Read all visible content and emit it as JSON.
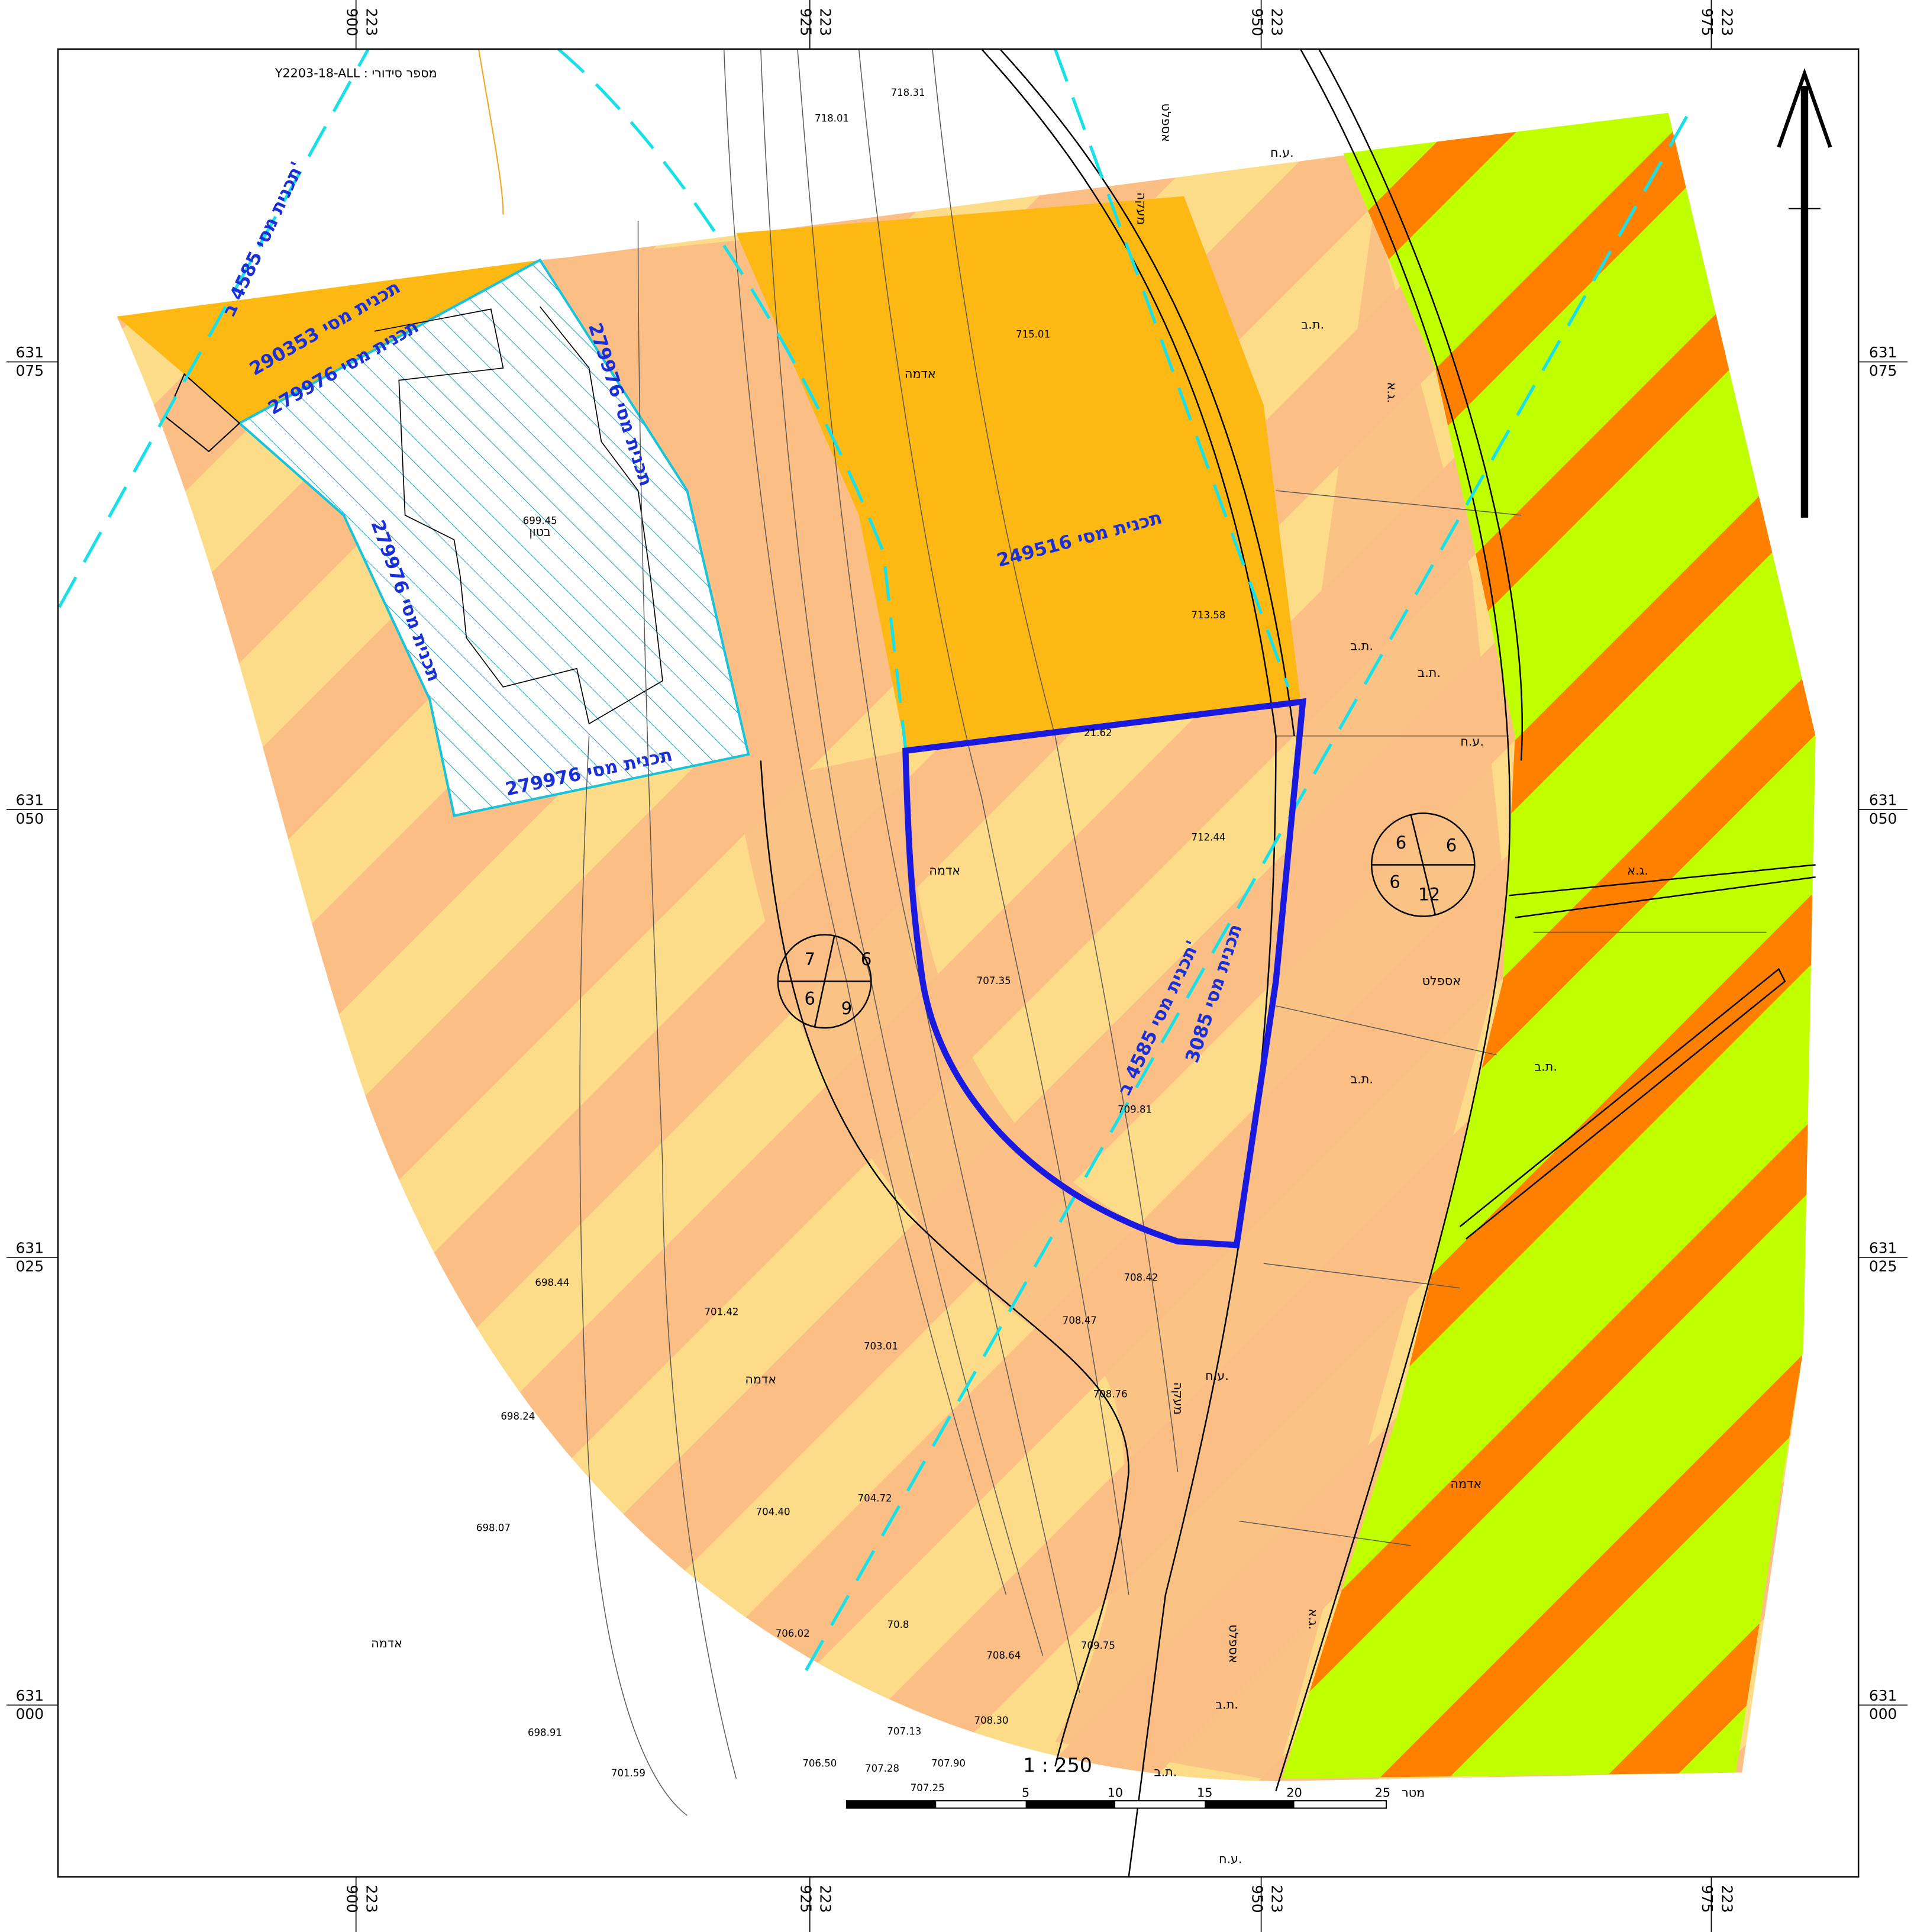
{
  "header": {
    "serial": "מספר סידורי : Y2203-18-ALL"
  },
  "grid": {
    "easting_prefix": "223",
    "eastings": [
      "900",
      "925",
      "950",
      "975"
    ],
    "northing_prefix": "631",
    "northings": [
      "075",
      "050",
      "025",
      "000"
    ]
  },
  "plans": [
    "תכנית מסי 249516",
    "תכנית מסי 279976",
    "תכנית מסי 290353",
    "תכנית מסי 4585 ב'",
    "תכנית מסי 3085"
  ],
  "labels": [
    "אדמה",
    "אספלט",
    "מעקה",
    "בטון",
    "ע.ח.",
    "ת.ב.",
    "ג.א."
  ],
  "elevations": [
    "718.31",
    "718.01",
    "715.01",
    "713.58",
    "712.44",
    "707.35",
    "709.81",
    "708.42",
    "708.47",
    "708.76",
    "701.42",
    "703.01",
    "698.44",
    "698.24",
    "698.07",
    "704.40",
    "704.72",
    "706.02",
    "70.8",
    "709.75",
    "708.30",
    "707.13",
    "698.91",
    "701.59",
    "699.45",
    "706.50",
    "707.28",
    "707.90",
    "707.25",
    "708.64",
    "21.62"
  ],
  "parcels": [
    [
      "7",
      "6",
      "6",
      "9"
    ],
    [
      "6",
      "6",
      "6",
      "12"
    ]
  ],
  "scale": {
    "ratio": "1 : 250",
    "bar": [
      "5",
      "10",
      "15",
      "20",
      "25"
    ],
    "unit": "מטר"
  }
}
